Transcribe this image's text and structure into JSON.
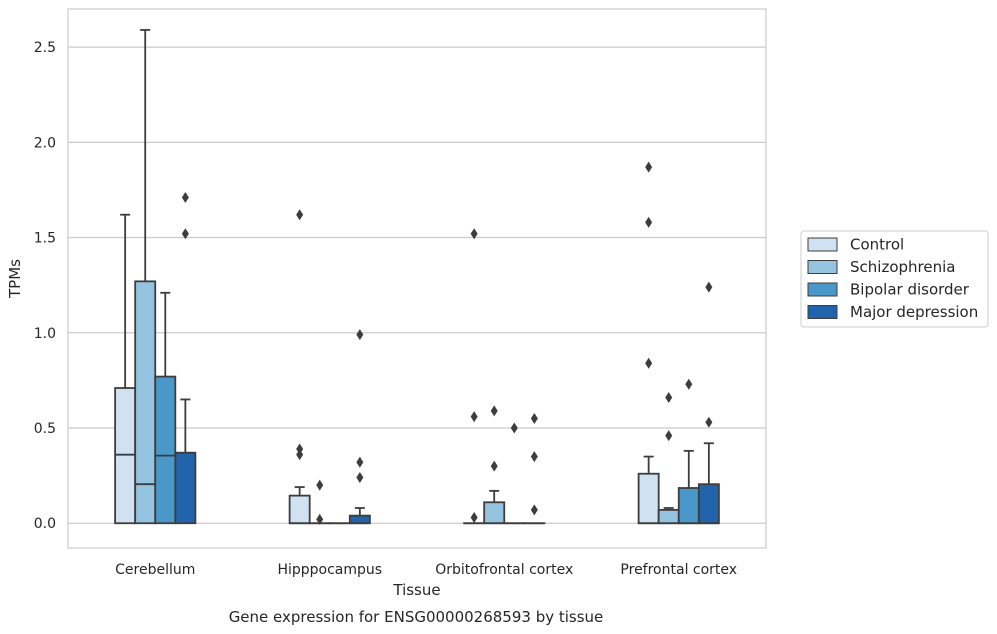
{
  "chart_data": {
    "type": "box",
    "title": "Gene expression for ENSG00000268593 by tissue",
    "xlabel": "Tissue",
    "ylabel": "TPMs",
    "ylim": [
      -0.13,
      2.7
    ],
    "yticks": [
      "0.0",
      "0.5",
      "1.0",
      "1.5",
      "2.0",
      "2.5"
    ],
    "grid": true,
    "legend_position": "right",
    "categories": [
      "Cerebellum",
      "Hipppocampus",
      "Orbitofrontal cortex",
      "Prefrontal cortex"
    ],
    "series": [
      {
        "name": "Control",
        "color": "#d0e1f2",
        "boxes": [
          {
            "q1": 0.0,
            "median": 0.36,
            "q3": 0.71,
            "whisker_low": 0.0,
            "whisker_high": 1.62,
            "outliers": []
          },
          {
            "q1": 0.0,
            "median": 0.0,
            "q3": 0.145,
            "whisker_low": 0.0,
            "whisker_high": 0.19,
            "outliers": [
              0.36,
              0.39,
              1.62
            ]
          },
          {
            "q1": 0.0,
            "median": 0.0,
            "q3": 0.0,
            "whisker_low": 0.0,
            "whisker_high": 0.0,
            "outliers": [
              0.03,
              0.56,
              1.52
            ]
          },
          {
            "q1": 0.0,
            "median": 0.0,
            "q3": 0.26,
            "whisker_low": 0.0,
            "whisker_high": 0.35,
            "outliers": [
              0.84,
              1.58,
              1.87
            ]
          }
        ]
      },
      {
        "name": "Schizophrenia",
        "color": "#94c4df",
        "boxes": [
          {
            "q1": 0.0,
            "median": 0.205,
            "q3": 1.27,
            "whisker_low": 0.0,
            "whisker_high": 2.59,
            "outliers": []
          },
          {
            "q1": 0.0,
            "median": 0.0,
            "q3": 0.0,
            "whisker_low": 0.0,
            "whisker_high": 0.0,
            "outliers": [
              0.02,
              0.2
            ]
          },
          {
            "q1": 0.0,
            "median": 0.0,
            "q3": 0.11,
            "whisker_low": 0.0,
            "whisker_high": 0.17,
            "outliers": [
              0.3,
              0.59
            ]
          },
          {
            "q1": 0.0,
            "median": 0.0,
            "q3": 0.07,
            "whisker_low": 0.0,
            "whisker_high": 0.08,
            "outliers": [
              0.46,
              0.66
            ]
          }
        ]
      },
      {
        "name": "Bipolar disorder",
        "color": "#4a98c9",
        "boxes": [
          {
            "q1": 0.0,
            "median": 0.355,
            "q3": 0.77,
            "whisker_low": 0.0,
            "whisker_high": 1.21,
            "outliers": []
          },
          {
            "q1": 0.0,
            "median": 0.0,
            "q3": 0.0,
            "whisker_low": 0.0,
            "whisker_high": 0.0,
            "outliers": []
          },
          {
            "q1": 0.0,
            "median": 0.0,
            "q3": 0.0,
            "whisker_low": 0.0,
            "whisker_high": 0.0,
            "outliers": [
              0.5
            ]
          },
          {
            "q1": 0.0,
            "median": 0.0,
            "q3": 0.185,
            "whisker_low": 0.0,
            "whisker_high": 0.38,
            "outliers": [
              0.73
            ]
          }
        ]
      },
      {
        "name": "Major depression",
        "color": "#2164ab",
        "boxes": [
          {
            "q1": 0.0,
            "median": 0.37,
            "q3": 0.37,
            "whisker_low": 0.0,
            "whisker_high": 0.65,
            "outliers": [
              1.52,
              1.71
            ]
          },
          {
            "q1": 0.0,
            "median": 0.0,
            "q3": 0.04,
            "whisker_low": 0.0,
            "whisker_high": 0.08,
            "outliers": [
              0.24,
              0.32,
              0.99
            ]
          },
          {
            "q1": 0.0,
            "median": 0.0,
            "q3": 0.0,
            "whisker_low": 0.0,
            "whisker_high": 0.0,
            "outliers": [
              0.07,
              0.35,
              0.55
            ]
          },
          {
            "q1": 0.0,
            "median": 0.0,
            "q3": 0.205,
            "whisker_low": 0.0,
            "whisker_high": 0.42,
            "outliers": [
              0.53,
              1.24
            ]
          }
        ]
      }
    ]
  }
}
